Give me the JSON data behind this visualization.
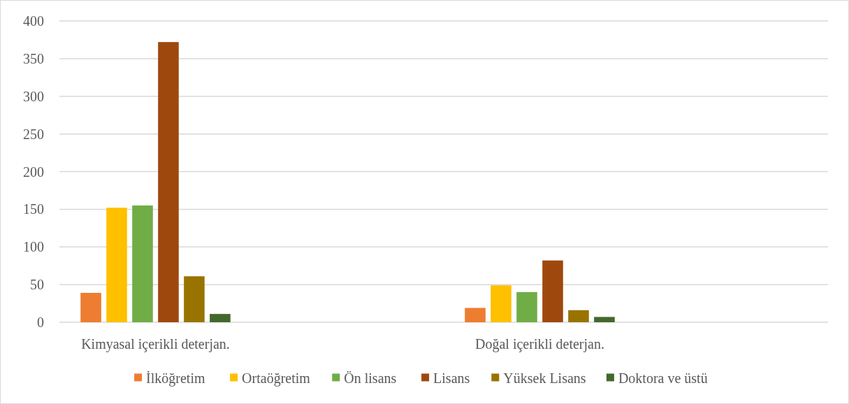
{
  "chart_data": {
    "type": "bar",
    "categories": [
      "Kimyasal içerikli deterjan.",
      null,
      "Doğal içerikli deterjan.",
      null
    ],
    "series": [
      {
        "name": "İlköğretim",
        "color": "#ed7d31",
        "values": [
          39,
          0,
          19,
          0
        ]
      },
      {
        "name": "Ortaöğretim",
        "color": "#ffc000",
        "values": [
          152,
          0,
          49,
          0
        ]
      },
      {
        "name": "Ön lisans",
        "color": "#70ad47",
        "values": [
          155,
          0,
          40,
          0
        ]
      },
      {
        "name": "Lisans",
        "color": "#9e480e",
        "values": [
          372,
          0,
          82,
          0
        ]
      },
      {
        "name": "Yüksek Lisans",
        "color": "#997300",
        "values": [
          61,
          0,
          16,
          0
        ]
      },
      {
        "name": "Doktora ve üstü",
        "color": "#43682b",
        "values": [
          11,
          0,
          7,
          0
        ]
      }
    ],
    "ylim": [
      0,
      400
    ],
    "yticks": [
      0,
      50,
      100,
      150,
      200,
      250,
      300,
      350,
      400
    ],
    "grid": "y",
    "legend": "bottom"
  }
}
